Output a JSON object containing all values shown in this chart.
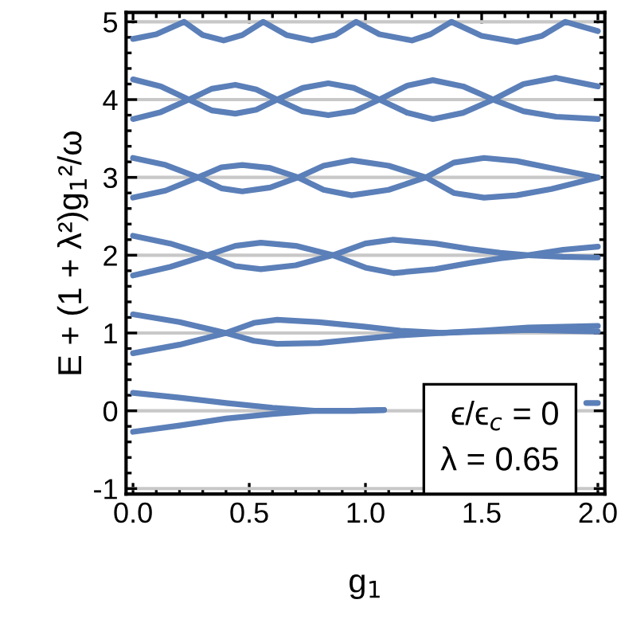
{
  "chart_data": {
    "type": "line",
    "xlabel": "g$_{1}$",
    "ylabel": "E + (1 + λ²)g$_{1}$²/ω",
    "xlim": [
      -0.03,
      2.03
    ],
    "ylim": [
      -1.07,
      5.12
    ],
    "xticks": [
      {
        "value": 0,
        "label": "0.0"
      },
      {
        "value": 0.5,
        "label": "0.5"
      },
      {
        "value": 1,
        "label": "1.0"
      },
      {
        "value": 1.5,
        "label": "1.5"
      },
      {
        "value": 2,
        "label": "2.0"
      }
    ],
    "yticks": [
      -1,
      0,
      1,
      2,
      3,
      4,
      5
    ],
    "grid": "y",
    "line_style": "solid",
    "marker": "none",
    "annotations": [
      "ϵ/ϵ$_{c}$ = 0",
      "λ = 0.65"
    ],
    "series": [
      {
        "color": "#5b7fb8",
        "x": [
          0,
          0.1,
          0.22,
          0.3,
          0.39,
          0.47,
          0.56,
          0.66,
          0.77,
          0.87,
          0.96,
          1.06,
          1.2,
          1.28,
          1.37,
          1.5,
          1.65,
          1.76,
          1.86,
          1.93,
          2.0
        ],
        "values": [
          4.78,
          4.84,
          5.0,
          4.83,
          4.76,
          4.83,
          5.0,
          4.83,
          4.76,
          4.83,
          5.0,
          4.84,
          4.76,
          4.84,
          5.0,
          4.82,
          4.74,
          4.82,
          5.0,
          4.94,
          4.88
        ]
      },
      {
        "color": "#5b7fb8",
        "x": [
          0,
          0.12,
          0.24,
          0.34,
          0.44,
          0.53,
          0.62,
          0.73,
          0.84,
          0.95,
          1.06,
          1.18,
          1.29,
          1.42,
          1.55,
          1.68,
          1.82,
          2.0
        ],
        "values": [
          4.26,
          4.17,
          4.0,
          3.86,
          3.82,
          3.87,
          4.0,
          4.15,
          4.21,
          4.15,
          4.0,
          3.83,
          3.75,
          3.83,
          4.0,
          4.2,
          4.28,
          4.17
        ]
      },
      {
        "color": "#5b7fb8",
        "x": [
          0,
          0.12,
          0.24,
          0.34,
          0.44,
          0.53,
          0.62,
          0.73,
          0.84,
          0.95,
          1.06,
          1.18,
          1.29,
          1.42,
          1.55,
          1.68,
          1.82,
          2.0
        ],
        "values": [
          3.75,
          3.84,
          4.0,
          4.14,
          4.19,
          4.13,
          4.0,
          3.85,
          3.8,
          3.85,
          4.0,
          4.18,
          4.25,
          4.17,
          4.0,
          3.85,
          3.78,
          3.75
        ]
      },
      {
        "color": "#5b7fb8",
        "x": [
          0,
          0.14,
          0.28,
          0.38,
          0.47,
          0.59,
          0.71,
          0.82,
          0.94,
          1.1,
          1.26,
          1.38,
          1.51,
          1.65,
          1.8,
          2.0
        ],
        "values": [
          3.25,
          3.16,
          3.0,
          2.86,
          2.82,
          2.87,
          3.0,
          3.15,
          3.22,
          3.15,
          3.0,
          2.8,
          2.74,
          2.77,
          2.85,
          3.0
        ]
      },
      {
        "color": "#5b7fb8",
        "x": [
          0,
          0.14,
          0.28,
          0.38,
          0.47,
          0.59,
          0.71,
          0.82,
          0.94,
          1.1,
          1.26,
          1.38,
          1.51,
          1.65,
          1.8,
          2.0
        ],
        "values": [
          2.74,
          2.83,
          3.0,
          3.13,
          3.16,
          3.12,
          3.0,
          2.84,
          2.77,
          2.84,
          3.0,
          3.19,
          3.25,
          3.21,
          3.12,
          3.0
        ]
      },
      {
        "color": "#5b7fb8",
        "x": [
          0,
          0.16,
          0.32,
          0.44,
          0.55,
          0.7,
          0.86,
          1.0,
          1.12,
          1.3,
          1.45,
          1.58,
          1.7,
          1.85,
          2.0
        ],
        "values": [
          2.25,
          2.15,
          2.0,
          1.86,
          1.82,
          1.87,
          2.0,
          2.15,
          2.2,
          2.15,
          2.08,
          2.03,
          2.0,
          1.98,
          1.97
        ]
      },
      {
        "color": "#5b7fb8",
        "x": [
          0,
          0.16,
          0.32,
          0.44,
          0.55,
          0.7,
          0.86,
          1.0,
          1.12,
          1.3,
          1.45,
          1.58,
          1.7,
          1.85,
          2.0
        ],
        "values": [
          1.74,
          1.85,
          2.0,
          2.12,
          2.16,
          2.12,
          2.0,
          1.84,
          1.77,
          1.82,
          1.9,
          1.96,
          2.0,
          2.07,
          2.11
        ]
      },
      {
        "color": "#5b7fb8",
        "x": [
          0,
          0.2,
          0.4,
          0.52,
          0.62,
          0.8,
          1.0,
          1.15,
          1.33,
          1.5,
          1.7,
          2.0
        ],
        "values": [
          1.24,
          1.14,
          1.0,
          0.9,
          0.86,
          0.87,
          0.93,
          0.97,
          1.0,
          1.02,
          1.04,
          1.02
        ]
      },
      {
        "color": "#5b7fb8",
        "x": [
          0,
          0.2,
          0.4,
          0.52,
          0.62,
          0.8,
          1.0,
          1.15,
          1.33,
          1.5,
          1.7,
          2.0
        ],
        "values": [
          0.74,
          0.85,
          1.0,
          1.13,
          1.17,
          1.14,
          1.08,
          1.03,
          1.0,
          1.03,
          1.07,
          1.09
        ]
      },
      {
        "color": "#5b7fb8",
        "x": [
          0,
          0.2,
          0.4,
          0.6,
          0.78,
          0.95,
          1.08,
          1.1,
          1.95,
          2.0
        ],
        "values": [
          0.23,
          0.17,
          0.1,
          0.04,
          0.0,
          0.0,
          0.01,
          null,
          0.1,
          0.1
        ]
      },
      {
        "color": "#5b7fb8",
        "x": [
          0,
          0.2,
          0.4,
          0.6,
          0.78,
          0.95,
          1.08
        ],
        "values": [
          -0.27,
          -0.19,
          -0.1,
          -0.04,
          0.0,
          0.0,
          0.01
        ]
      }
    ]
  }
}
